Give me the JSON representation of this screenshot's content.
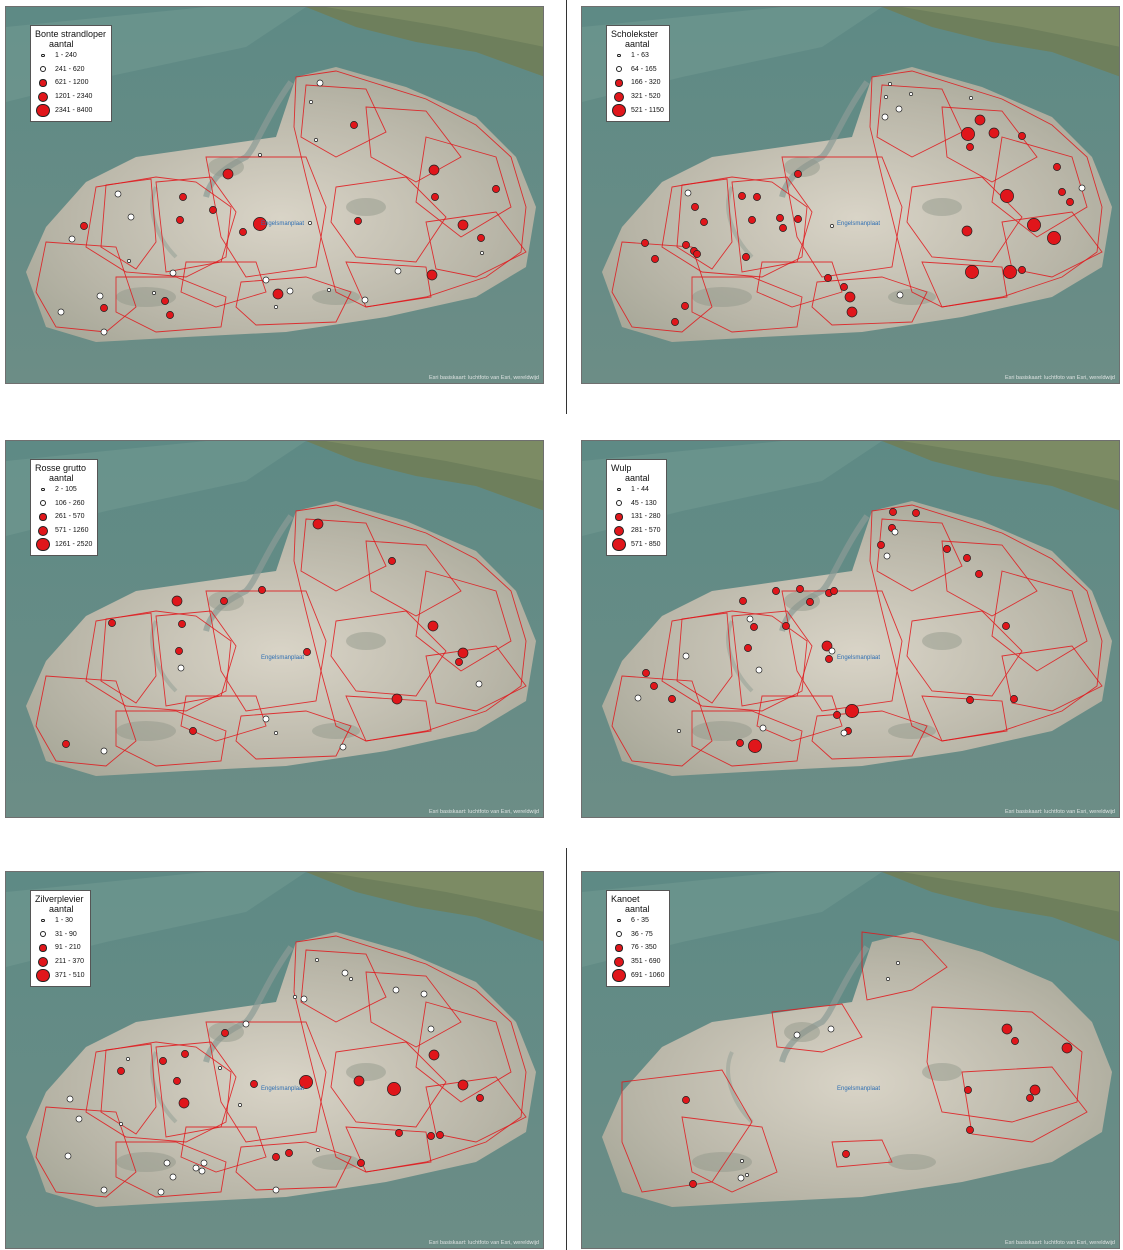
{
  "attribution": "Esri basiskaart: luchtfoto van Esri, wereldwijd",
  "place_label": "Engelsmanplaat",
  "panels": [
    {
      "species": "Bonte strandloper",
      "unit": "aantal",
      "classes": [
        "1 - 240",
        "241 - 620",
        "621 - 1200",
        "1201 - 2340",
        "2341 - 8400"
      ],
      "points": [
        [
          305,
          95
        ],
        [
          348,
          118
        ],
        [
          310,
          133
        ],
        [
          254,
          148
        ],
        [
          222,
          167
        ],
        [
          177,
          190
        ],
        [
          207,
          203
        ],
        [
          174,
          213
        ],
        [
          254,
          217
        ],
        [
          237,
          225
        ],
        [
          304,
          216
        ],
        [
          352,
          214
        ],
        [
          428,
          163
        ],
        [
          429,
          190
        ],
        [
          490,
          182
        ],
        [
          457,
          218
        ],
        [
          475,
          231
        ],
        [
          476,
          246
        ],
        [
          426,
          268
        ],
        [
          392,
          264
        ],
        [
          359,
          293
        ],
        [
          323,
          283
        ],
        [
          260,
          273
        ],
        [
          272,
          287
        ],
        [
          284,
          284
        ],
        [
          164,
          308
        ],
        [
          159,
          294
        ],
        [
          148,
          286
        ],
        [
          98,
          301
        ],
        [
          94,
          289
        ],
        [
          98,
          325
        ],
        [
          78,
          219
        ],
        [
          66,
          232
        ],
        [
          112,
          187
        ],
        [
          125,
          210
        ],
        [
          167,
          266
        ],
        [
          123,
          254
        ],
        [
          55,
          305
        ],
        [
          270,
          300
        ],
        [
          314,
          76
        ]
      ],
      "sizes": [
        0,
        2,
        0,
        0,
        3,
        2,
        2,
        2,
        4,
        2,
        0,
        2,
        3,
        2,
        2,
        3,
        2,
        0,
        3,
        1,
        1,
        0,
        1,
        3,
        1,
        2,
        2,
        0,
        2,
        1,
        1,
        2,
        1,
        1,
        1,
        1,
        0,
        1,
        0,
        1
      ]
    },
    {
      "species": "Scholekster",
      "unit": "aantal",
      "classes": [
        "1 - 63",
        "64 - 165",
        "166 - 320",
        "321 - 520",
        "521 - 1150"
      ],
      "points": [
        [
          304,
          90
        ],
        [
          303,
          110
        ],
        [
          398,
          113
        ],
        [
          386,
          127
        ],
        [
          388,
          140
        ],
        [
          412,
          126
        ],
        [
          440,
          129
        ],
        [
          475,
          160
        ],
        [
          480,
          185
        ],
        [
          488,
          195
        ],
        [
          500,
          181
        ],
        [
          425,
          189
        ],
        [
          452,
          218
        ],
        [
          472,
          231
        ],
        [
          385,
          224
        ],
        [
          390,
          265
        ],
        [
          428,
          265
        ],
        [
          440,
          263
        ],
        [
          318,
          288
        ],
        [
          262,
          280
        ],
        [
          268,
          290
        ],
        [
          270,
          305
        ],
        [
          164,
          250
        ],
        [
          198,
          211
        ],
        [
          216,
          212
        ],
        [
          201,
          221
        ],
        [
          170,
          213
        ],
        [
          160,
          189
        ],
        [
          175,
          190
        ],
        [
          106,
          186
        ],
        [
          113,
          200
        ],
        [
          122,
          215
        ],
        [
          104,
          238
        ],
        [
          63,
          236
        ],
        [
          73,
          252
        ],
        [
          112,
          244
        ],
        [
          115,
          247
        ],
        [
          103,
          299
        ],
        [
          93,
          315
        ],
        [
          216,
          167
        ],
        [
          250,
          219
        ],
        [
          246,
          271
        ],
        [
          317,
          102
        ],
        [
          329,
          87
        ],
        [
          389,
          91
        ],
        [
          308,
          77
        ]
      ],
      "sizes": [
        0,
        1,
        3,
        4,
        2,
        3,
        2,
        2,
        2,
        2,
        1,
        4,
        4,
        4,
        3,
        4,
        4,
        2,
        1,
        2,
        3,
        3,
        2,
        2,
        2,
        2,
        2,
        2,
        2,
        1,
        2,
        2,
        2,
        2,
        2,
        2,
        2,
        2,
        2,
        2,
        0,
        2,
        1,
        0,
        0,
        0
      ]
    },
    {
      "species": "Rosse grutto",
      "unit": "aantal",
      "classes": [
        "2 - 105",
        "106 - 260",
        "261 - 570",
        "571 - 1260",
        "1261 - 2520"
      ],
      "points": [
        [
          312,
          83
        ],
        [
          386,
          120
        ],
        [
          171,
          160
        ],
        [
          218,
          160
        ],
        [
          256,
          149
        ],
        [
          176,
          183
        ],
        [
          173,
          210
        ],
        [
          175,
          227
        ],
        [
          106,
          182
        ],
        [
          301,
          211
        ],
        [
          427,
          185
        ],
        [
          457,
          212
        ],
        [
          453,
          221
        ],
        [
          473,
          243
        ],
        [
          391,
          258
        ],
        [
          187,
          290
        ],
        [
          337,
          306
        ],
        [
          60,
          303
        ],
        [
          260,
          278
        ],
        [
          270,
          292
        ],
        [
          98,
          310
        ]
      ],
      "sizes": [
        3,
        2,
        3,
        2,
        2,
        2,
        2,
        1,
        2,
        2,
        3,
        3,
        2,
        1,
        3,
        2,
        1,
        2,
        1,
        0,
        1
      ]
    },
    {
      "species": "Wulp",
      "unit": "aantal",
      "classes": [
        "1 - 44",
        "45 - 130",
        "131 - 280",
        "281 - 570",
        "571 - 850"
      ],
      "points": [
        [
          311,
          71
        ],
        [
          334,
          72
        ],
        [
          310,
          87
        ],
        [
          313,
          91
        ],
        [
          299,
          104
        ],
        [
          305,
          115
        ],
        [
          365,
          108
        ],
        [
          385,
          117
        ],
        [
          397,
          133
        ],
        [
          194,
          150
        ],
        [
          218,
          148
        ],
        [
          228,
          161
        ],
        [
          247,
          152
        ],
        [
          252,
          150
        ],
        [
          161,
          160
        ],
        [
          168,
          178
        ],
        [
          172,
          186
        ],
        [
          204,
          185
        ],
        [
          166,
          207
        ],
        [
          245,
          205
        ],
        [
          250,
          210
        ],
        [
          177,
          229
        ],
        [
          247,
          218
        ],
        [
          424,
          185
        ],
        [
          432,
          258
        ],
        [
          388,
          259
        ],
        [
          270,
          270
        ],
        [
          266,
          290
        ],
        [
          158,
          302
        ],
        [
          173,
          305
        ],
        [
          181,
          287
        ],
        [
          255,
          274
        ],
        [
          262,
          292
        ],
        [
          90,
          258
        ],
        [
          104,
          215
        ],
        [
          64,
          232
        ],
        [
          72,
          245
        ],
        [
          56,
          257
        ],
        [
          97,
          290
        ]
      ],
      "sizes": [
        2,
        2,
        2,
        1,
        2,
        1,
        2,
        2,
        2,
        2,
        2,
        2,
        2,
        2,
        2,
        1,
        2,
        2,
        2,
        3,
        1,
        1,
        2,
        2,
        2,
        2,
        4,
        2,
        2,
        4,
        1,
        2,
        1,
        2,
        1,
        2,
        2,
        1,
        0
      ]
    },
    {
      "species": "Zilverplevier",
      "unit": "aantal",
      "classes": [
        "1 - 30",
        "31 - 90",
        "91 - 210",
        "211 - 370",
        "371 - 510"
      ],
      "points": [
        [
          311,
          88
        ],
        [
          339,
          101
        ],
        [
          345,
          107
        ],
        [
          289,
          125
        ],
        [
          298,
          127
        ],
        [
          390,
          118
        ],
        [
          418,
          122
        ],
        [
          425,
          157
        ],
        [
          428,
          183
        ],
        [
          457,
          213
        ],
        [
          474,
          226
        ],
        [
          248,
          212
        ],
        [
          300,
          210
        ],
        [
          353,
          209
        ],
        [
          388,
          217
        ],
        [
          240,
          152
        ],
        [
          219,
          161
        ],
        [
          179,
          182
        ],
        [
          157,
          189
        ],
        [
          171,
          209
        ],
        [
          178,
          231
        ],
        [
          214,
          196
        ],
        [
          234,
          233
        ],
        [
          122,
          187
        ],
        [
          115,
          199
        ],
        [
          64,
          227
        ],
        [
          73,
          247
        ],
        [
          115,
          252
        ],
        [
          161,
          291
        ],
        [
          198,
          291
        ],
        [
          190,
          296
        ],
        [
          196,
          299
        ],
        [
          167,
          305
        ],
        [
          283,
          281
        ],
        [
          270,
          285
        ],
        [
          355,
          291
        ],
        [
          270,
          318
        ],
        [
          312,
          278
        ],
        [
          434,
          263
        ],
        [
          425,
          264
        ],
        [
          393,
          261
        ],
        [
          62,
          284
        ],
        [
          98,
          318
        ],
        [
          155,
          320
        ]
      ],
      "sizes": [
        0,
        1,
        0,
        0,
        1,
        1,
        1,
        1,
        3,
        3,
        2,
        2,
        4,
        3,
        4,
        1,
        2,
        2,
        2,
        2,
        3,
        0,
        0,
        0,
        2,
        1,
        1,
        0,
        1,
        1,
        1,
        1,
        1,
        2,
        2,
        2,
        1,
        0,
        2,
        2,
        2,
        1,
        1,
        1
      ]
    },
    {
      "species": "Kanoet",
      "unit": "aantal",
      "classes": [
        "6 - 35",
        "36 - 75",
        "76 - 350",
        "351 - 690",
        "691 - 1060"
      ],
      "points": [
        [
          316,
          91
        ],
        [
          306,
          107
        ],
        [
          215,
          163
        ],
        [
          249,
          157
        ],
        [
          425,
          157
        ],
        [
          433,
          169
        ],
        [
          485,
          176
        ],
        [
          453,
          218
        ],
        [
          448,
          226
        ],
        [
          386,
          218
        ],
        [
          388,
          258
        ],
        [
          264,
          282
        ],
        [
          104,
          228
        ],
        [
          111,
          312
        ],
        [
          160,
          289
        ],
        [
          165,
          303
        ],
        [
          159,
          306
        ]
      ],
      "sizes": [
        0,
        0,
        1,
        1,
        3,
        2,
        3,
        3,
        2,
        2,
        2,
        2,
        2,
        2,
        0,
        0,
        1
      ]
    }
  ]
}
